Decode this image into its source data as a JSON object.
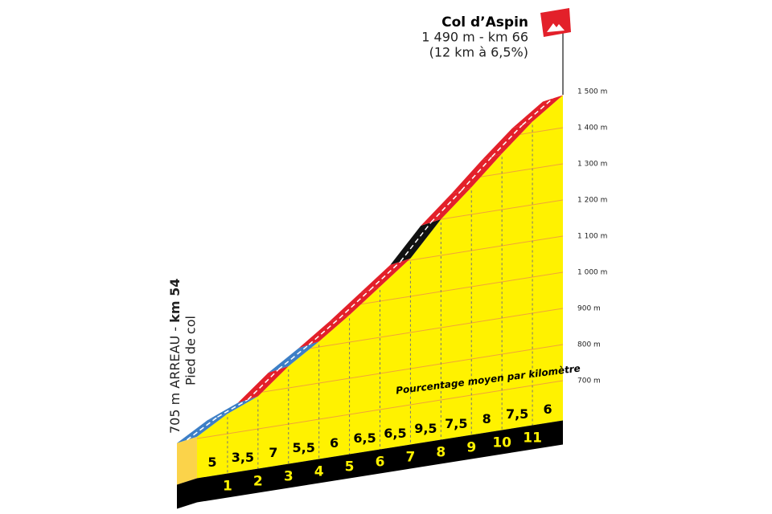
{
  "chart_data": {
    "type": "climb-profile",
    "title": "Col d’Aspin",
    "subtitle": "1 490 m - km 66",
    "note": "(12 km à 6,5%)",
    "start_label": "705 m ARREAU - ",
    "start_km": "km 54",
    "start_note": "Pied de col",
    "gradient_caption": "Pourcentage moyen par kilomètre",
    "x": [
      0,
      1,
      2,
      3,
      4,
      5,
      6,
      7,
      8,
      9,
      10,
      11,
      12
    ],
    "elevations": [
      705,
      755,
      790,
      860,
      915,
      975,
      1040,
      1105,
      1200,
      1275,
      1355,
      1430,
      1490
    ],
    "gradients": [
      5,
      3.5,
      7,
      5.5,
      6,
      6.5,
      6.5,
      9.5,
      7.5,
      8,
      7.5,
      6
    ],
    "value_labels": [
      "5",
      "3,5",
      "7",
      "5,5",
      "6",
      "6,5",
      "6,5",
      "9,5",
      "7,5",
      "8",
      "7,5",
      "6"
    ],
    "segment_colors": [
      "#3d7fc6",
      "#3d7fc6",
      "#e3202a",
      "#3d7fc6",
      "#e3202a",
      "#e3202a",
      "#e3202a",
      "#111111",
      "#e3202a",
      "#e3202a",
      "#e3202a",
      "#e3202a"
    ],
    "xlim": [
      0,
      12
    ],
    "xticks": [
      1,
      2,
      3,
      4,
      5,
      6,
      7,
      8,
      9,
      10,
      11
    ],
    "ylim": [
      590,
      1500
    ],
    "yticks": [
      {
        "value": 700,
        "label": "700 m"
      },
      {
        "value": 800,
        "label": "800 m"
      },
      {
        "value": 900,
        "label": "900 m"
      },
      {
        "value": 1000,
        "label": "1 000 m"
      },
      {
        "value": 1100,
        "label": "1 100 m"
      },
      {
        "value": 1200,
        "label": "1 200 m"
      },
      {
        "value": 1300,
        "label": "1 300 m"
      },
      {
        "value": 1400,
        "label": "1 400 m"
      },
      {
        "value": 1500,
        "label": "1 500 m"
      }
    ],
    "grid": true,
    "fill_color": "#fff200"
  }
}
